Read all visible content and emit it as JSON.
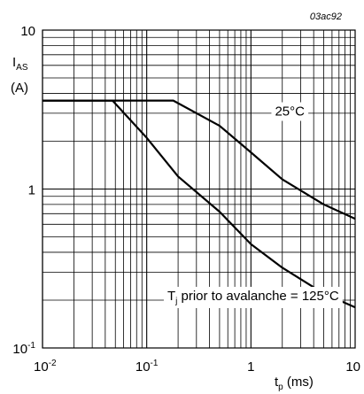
{
  "figure_code": "03ac92",
  "chart_data": {
    "type": "line",
    "x_scale": "log",
    "y_scale": "log",
    "xlim": [
      0.01,
      10
    ],
    "ylim": [
      0.1,
      10
    ],
    "grid": true,
    "xlabel": {
      "main": "t",
      "sub": "p",
      "unit": " (ms)"
    },
    "ylabel": {
      "main": "I",
      "sub": "AS",
      "unit": "(A)"
    },
    "x_ticks": [
      {
        "value": 0.01,
        "base": "10",
        "exp": "-2"
      },
      {
        "value": 0.1,
        "base": "10",
        "exp": "-1"
      },
      {
        "value": 1,
        "base": "1",
        "exp": ""
      },
      {
        "value": 10,
        "base": "10",
        "exp": ""
      }
    ],
    "y_ticks": [
      {
        "value": 10,
        "base": "10",
        "exp": ""
      },
      {
        "value": 1,
        "base": "1",
        "exp": ""
      },
      {
        "value": 0.1,
        "base": "10",
        "exp": "-1"
      }
    ],
    "series": [
      {
        "name": "25°C",
        "points": [
          [
            0.01,
            3.6
          ],
          [
            0.18,
            3.6
          ],
          [
            0.5,
            2.5
          ],
          [
            1,
            1.7
          ],
          [
            2,
            1.15
          ],
          [
            5,
            0.8
          ],
          [
            10,
            0.65
          ]
        ]
      },
      {
        "name": "",
        "points": [
          [
            0.01,
            3.6
          ],
          [
            0.047,
            3.6
          ],
          [
            0.1,
            2.1
          ],
          [
            0.2,
            1.2
          ],
          [
            0.5,
            0.72
          ],
          [
            1,
            0.45
          ],
          [
            2,
            0.32
          ],
          [
            5,
            0.22
          ],
          [
            10,
            0.18
          ]
        ]
      }
    ],
    "annotations": [
      {
        "text": "25°C",
        "x": 1.7,
        "y": 2.9
      },
      {
        "text_main": "T",
        "text_sub": "j",
        "text_rest": " prior to avalanche = 125°C",
        "x": 1.05,
        "y": 0.2
      }
    ]
  }
}
